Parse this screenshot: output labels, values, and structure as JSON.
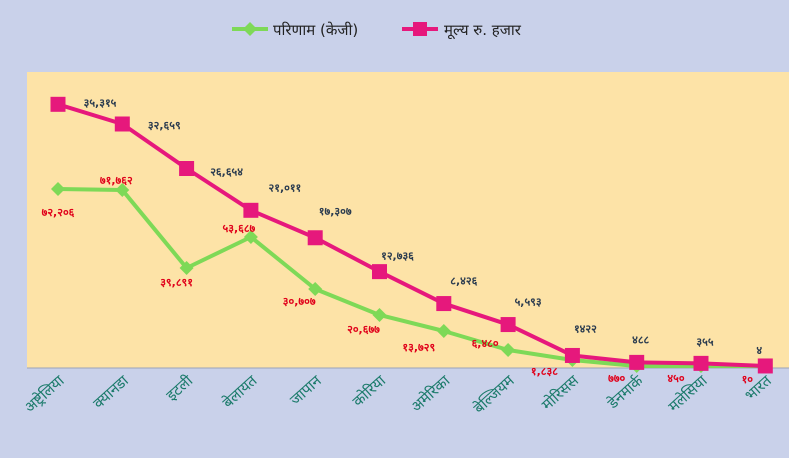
{
  "chart_data": {
    "type": "line",
    "categories": [
      "अष्ट्रेलिया",
      "क्यानडा",
      "इटली",
      "बेलायत",
      "जापान",
      "कोरिया",
      "अमेरिका",
      "बेल्जियम",
      "मोरिसस",
      "डेनमार्क",
      "मलेसिया",
      "भारत"
    ],
    "series": [
      {
        "name": "परिणाम (केजी)",
        "color": "#7ed957",
        "marker": "diamond",
        "values": [
          72206,
          71762,
          39891,
          53687,
          30707,
          20677,
          13729,
          6480,
          1838,
          770,
          450,
          10
        ],
        "labels": [
          "७२,२०६",
          "७१,७६२",
          "३९,८९१",
          "५३,६८७",
          "३०,७०७",
          "२०,६७७",
          "१३,७२९",
          "६,४८०",
          "१,८३८",
          "७७०",
          "४५०",
          "१०"
        ]
      },
      {
        "name": "मूल्य रु. हजार",
        "color": "#e6187c",
        "marker": "square",
        "values": [
          35315,
          32659,
          26654,
          21011,
          17307,
          12736,
          8426,
          5593,
          1422,
          488,
          355,
          4
        ],
        "labels": [
          "३५,३१५",
          "३२,६५९",
          "२६,६५४",
          "२१,०११",
          "१७,३०७",
          "१२,७३६",
          "८,४२६",
          "५,५९३",
          "१४२२",
          "४८८",
          "३५५",
          "४"
        ]
      }
    ],
    "legend_position": "top-center",
    "grid": false,
    "plot_background": "#fde3a7"
  }
}
